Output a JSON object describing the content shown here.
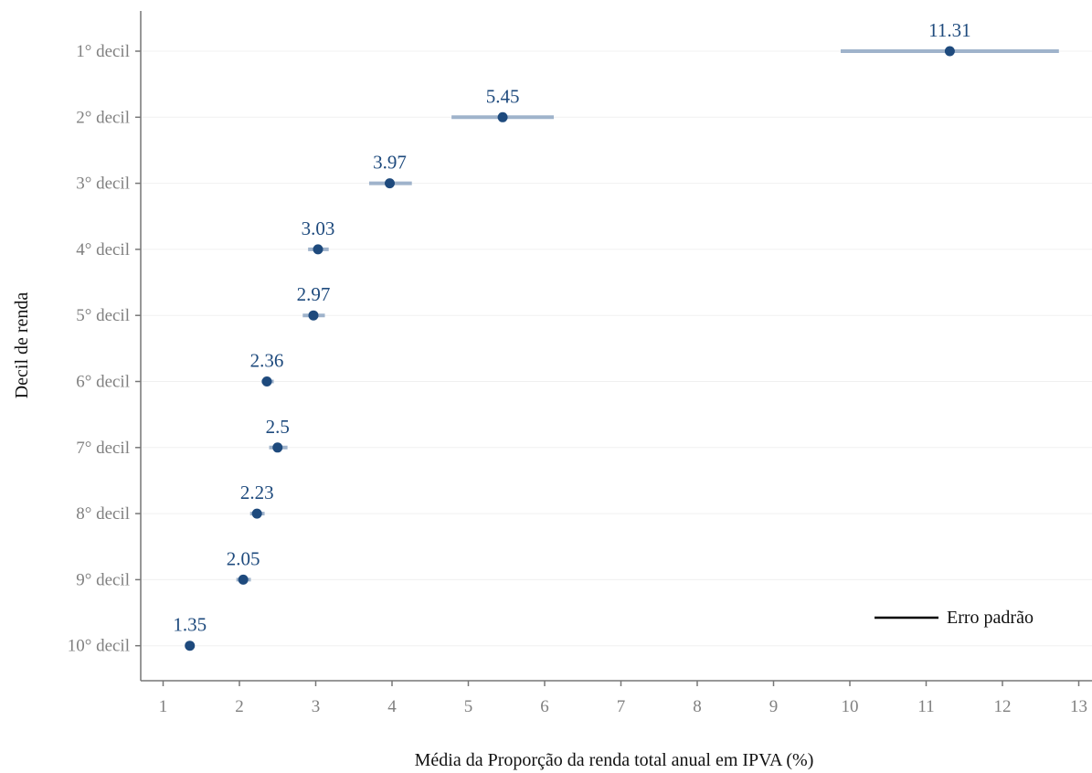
{
  "chart_data": {
    "type": "scatter",
    "title": "",
    "xlabel": "Média da Proporção da renda total anual em IPVA (%)",
    "ylabel": "Decil de renda",
    "xlim": [
      0.7,
      13.2
    ],
    "xticks": [
      1,
      2,
      3,
      4,
      5,
      6,
      7,
      8,
      9,
      10,
      11,
      12,
      13
    ],
    "grid": "horizontal",
    "legend_position": "bottom-right",
    "legend_label": "Erro padrão",
    "categories": [
      "1° decil",
      "2° decil",
      "3° decil",
      "4° decil",
      "5° decil",
      "6° decil",
      "7° decil",
      "8° decil",
      "9° decil",
      "10° decil"
    ],
    "series": [
      {
        "values": [
          11.31,
          5.45,
          3.97,
          3.03,
          2.97,
          2.36,
          2.5,
          2.23,
          2.05,
          1.35
        ],
        "labels": [
          "11.31",
          "5.45",
          "3.97",
          "3.03",
          "2.97",
          "2.36",
          "2.5",
          "2.23",
          "2.05",
          "1.35"
        ],
        "error_low": [
          9.88,
          4.78,
          3.7,
          2.9,
          2.83,
          2.29,
          2.39,
          2.14,
          1.96,
          1.33
        ],
        "error_high": [
          12.74,
          6.12,
          4.26,
          3.17,
          3.12,
          2.45,
          2.63,
          2.33,
          2.15,
          1.38
        ]
      }
    ],
    "colors": {
      "point": "#1e4a7d",
      "errorbar": "#9fb3cb",
      "label": "#1e4a7d",
      "axis": "#777777",
      "grid": "#f0f0f0"
    }
  }
}
